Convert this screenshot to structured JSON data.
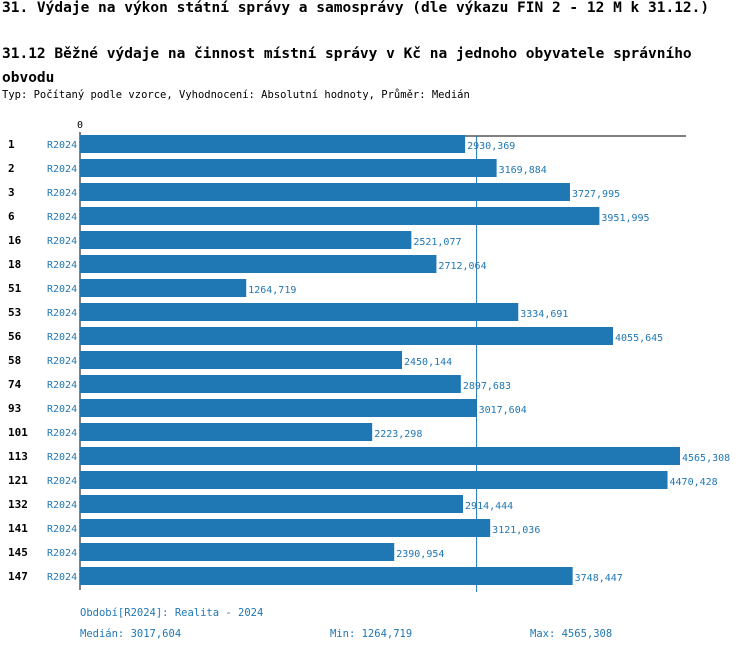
{
  "header": {
    "title": "31. Výdaje na výkon státní správy a samosprávy (dle výkazu FIN 2 - 12 M k 31.12.)",
    "chart_title": "31.12 Běžné výdaje na činnost místní správy v Kč na jednoho obyvatele správního obvodu",
    "subtitle": "Typ: Počítaný podle vzorce, Vyhodnocení: Absolutní hodnoty, Průměr: Medián"
  },
  "footer": {
    "period": "Období[R2024]: Realita - 2024",
    "median": "Medián: 3017,604",
    "min": "Min: 1264,719",
    "max": "Max: 4565,308"
  },
  "colors": {
    "bar": "#1f77b4",
    "text_accent": "#1f77b4",
    "axis": "#000000"
  },
  "chart_data": {
    "type": "bar",
    "orientation": "horizontal",
    "axis_zero_label": "0",
    "median_line": 3017.604,
    "categories": [
      "1",
      "2",
      "3",
      "6",
      "16",
      "18",
      "51",
      "53",
      "56",
      "58",
      "74",
      "93",
      "101",
      "113",
      "121",
      "132",
      "141",
      "145",
      "147"
    ],
    "series_label": "R2024",
    "values": [
      2930.369,
      3169.884,
      3727.995,
      3951.995,
      2521.077,
      2712.064,
      1264.719,
      3334.691,
      4055.645,
      2450.144,
      2897.683,
      3017.604,
      2223.298,
      4565.308,
      4470.428,
      2914.444,
      3121.036,
      2390.954,
      3748.447
    ],
    "value_labels": [
      "2930,369",
      "3169,884",
      "3727,995",
      "3951,995",
      "2521,077",
      "2712,064",
      "1264,719",
      "3334,691",
      "4055,645",
      "2450,144",
      "2897,683",
      "3017,604",
      "2223,298",
      "4565,308",
      "4470,428",
      "2914,444",
      "3121,036",
      "2390,954",
      "3748,447"
    ]
  }
}
